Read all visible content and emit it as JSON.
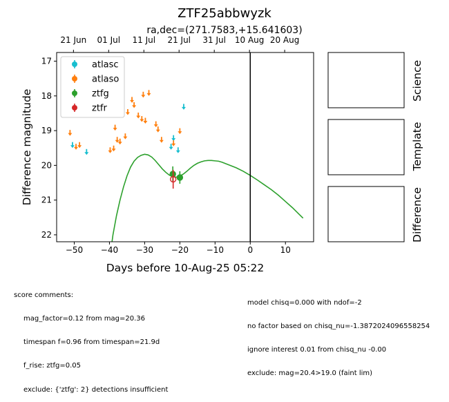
{
  "chart_data": {
    "type": "scatter",
    "title": "ZTF25abbwyzk",
    "subtitle": "ra,dec=(271.7583,+15.641603)",
    "xlabel": "Days before 10-Aug-25 05:22",
    "ylabel": "Difference magnitude",
    "xlim": [
      -55,
      18
    ],
    "ylim": [
      22.2,
      16.75
    ],
    "x_ticks": [
      -50,
      -40,
      -30,
      -20,
      -10,
      0,
      10
    ],
    "x_tick_labels": [
      "−50",
      "−40",
      "−30",
      "−20",
      "−10",
      "0",
      "10"
    ],
    "y_ticks": [
      17,
      18,
      19,
      20,
      21,
      22
    ],
    "y_tick_labels": [
      "17",
      "18",
      "19",
      "20",
      "21",
      "22"
    ],
    "top_axis_ticks": [
      {
        "x": -50.22,
        "label": "21 Jun"
      },
      {
        "x": -40.22,
        "label": "01 Jul"
      },
      {
        "x": -30.22,
        "label": "11 Jul"
      },
      {
        "x": -20.22,
        "label": "21 Jul"
      },
      {
        "x": -10.22,
        "label": "31 Jul"
      },
      {
        "x": -0.22,
        "label": "10 Aug"
      },
      {
        "x": 9.78,
        "label": "20 Aug"
      }
    ],
    "legend_position": "upper-left",
    "reference_line_x": 0,
    "series": [
      {
        "name": "atlasc",
        "color": "#17becf",
        "marker": "circle",
        "upper_limits": [
          {
            "x": -50.5,
            "y": 19.4
          },
          {
            "x": -46.5,
            "y": 19.6
          },
          {
            "x": -22.5,
            "y": 19.45
          },
          {
            "x": -21.8,
            "y": 19.2
          },
          {
            "x": -20.5,
            "y": 19.55
          },
          {
            "x": -18.9,
            "y": 18.3
          }
        ],
        "detections": []
      },
      {
        "name": "atlaso",
        "color": "#ff7f0e",
        "marker": "circle",
        "upper_limits": [
          {
            "x": -51.2,
            "y": 19.05
          },
          {
            "x": -49.5,
            "y": 19.45
          },
          {
            "x": -48.5,
            "y": 19.4
          },
          {
            "x": -39.8,
            "y": 19.55
          },
          {
            "x": -38.8,
            "y": 19.5
          },
          {
            "x": -38.4,
            "y": 18.9
          },
          {
            "x": -37.8,
            "y": 19.25
          },
          {
            "x": -37.0,
            "y": 19.3
          },
          {
            "x": -35.5,
            "y": 19.15
          },
          {
            "x": -34.8,
            "y": 18.45
          },
          {
            "x": -33.6,
            "y": 18.1
          },
          {
            "x": -33.0,
            "y": 18.25
          },
          {
            "x": -31.8,
            "y": 18.55
          },
          {
            "x": -30.8,
            "y": 18.65
          },
          {
            "x": -30.4,
            "y": 17.95
          },
          {
            "x": -29.8,
            "y": 18.7
          },
          {
            "x": -28.8,
            "y": 17.9
          },
          {
            "x": -26.8,
            "y": 18.8
          },
          {
            "x": -26.2,
            "y": 18.95
          },
          {
            "x": -25.2,
            "y": 19.25
          },
          {
            "x": -21.8,
            "y": 19.35
          },
          {
            "x": -20.0,
            "y": 19.0
          }
        ],
        "detections": []
      },
      {
        "name": "ztfg",
        "color": "#2ca02c",
        "marker": "circle",
        "upper_limits": [],
        "detections": [
          {
            "x": -22.0,
            "y": 20.25,
            "err": 0.22
          },
          {
            "x": -20.0,
            "y": 20.35,
            "err": 0.18
          }
        ]
      },
      {
        "name": "ztfr",
        "color": "#d62728",
        "marker": "circle",
        "upper_limits": [],
        "detections": [
          {
            "x": -21.9,
            "y": 20.4,
            "err": 0.27,
            "open": true
          }
        ]
      }
    ],
    "model_curve": {
      "color": "#2ca02c",
      "x": [
        -39.8,
        -39.0,
        -38.0,
        -37.0,
        -36.0,
        -35.0,
        -34.0,
        -33.0,
        -32.0,
        -31.0,
        -30.0,
        -29.0,
        -28.0,
        -27.0,
        -26.0,
        -25.0,
        -24.0,
        -23.0,
        -22.0,
        -21.0,
        -20.0,
        -19.0,
        -18.0,
        -17.0,
        -16.0,
        -15.0,
        -14.0,
        -13.0,
        -12.0,
        -11.0,
        -10.0,
        -9.0,
        -8.0,
        -6.0,
        -4.0,
        -2.0,
        0.0,
        2.0,
        4.0,
        6.0,
        8.0,
        10.0,
        12.0,
        14.0,
        15.0
      ],
      "y": [
        22.6,
        22.0,
        21.45,
        21.0,
        20.62,
        20.3,
        20.05,
        19.88,
        19.77,
        19.71,
        19.68,
        19.7,
        19.76,
        19.86,
        19.98,
        20.1,
        20.2,
        20.28,
        20.33,
        20.34,
        20.31,
        20.25,
        20.17,
        20.08,
        20.0,
        19.94,
        19.9,
        19.87,
        19.86,
        19.86,
        19.87,
        19.88,
        19.91,
        19.99,
        20.07,
        20.17,
        20.29,
        20.42,
        20.56,
        20.7,
        20.86,
        21.04,
        21.22,
        21.42,
        21.52
      ]
    }
  },
  "side_panels": {
    "labels": [
      "Science",
      "Template",
      "Difference"
    ]
  },
  "score_comments": {
    "header": "score comments:",
    "left_lines": [
      "mag_factor=0.12 from mag=20.36",
      "timespan f=0.96 from timespan=21.9d",
      "f_rise: ztfg=0.05",
      "exclude: {'ztfg': 2} detections insufficient"
    ],
    "right_lines": [
      "model chisq=0.000 with ndof=-2",
      "no factor based on chisq_nu=-1.3872024096558254",
      "ignore interest 0.01 from chisq_nu -0.00",
      "exclude: mag=20.4>19.0 (faint lim)"
    ]
  }
}
